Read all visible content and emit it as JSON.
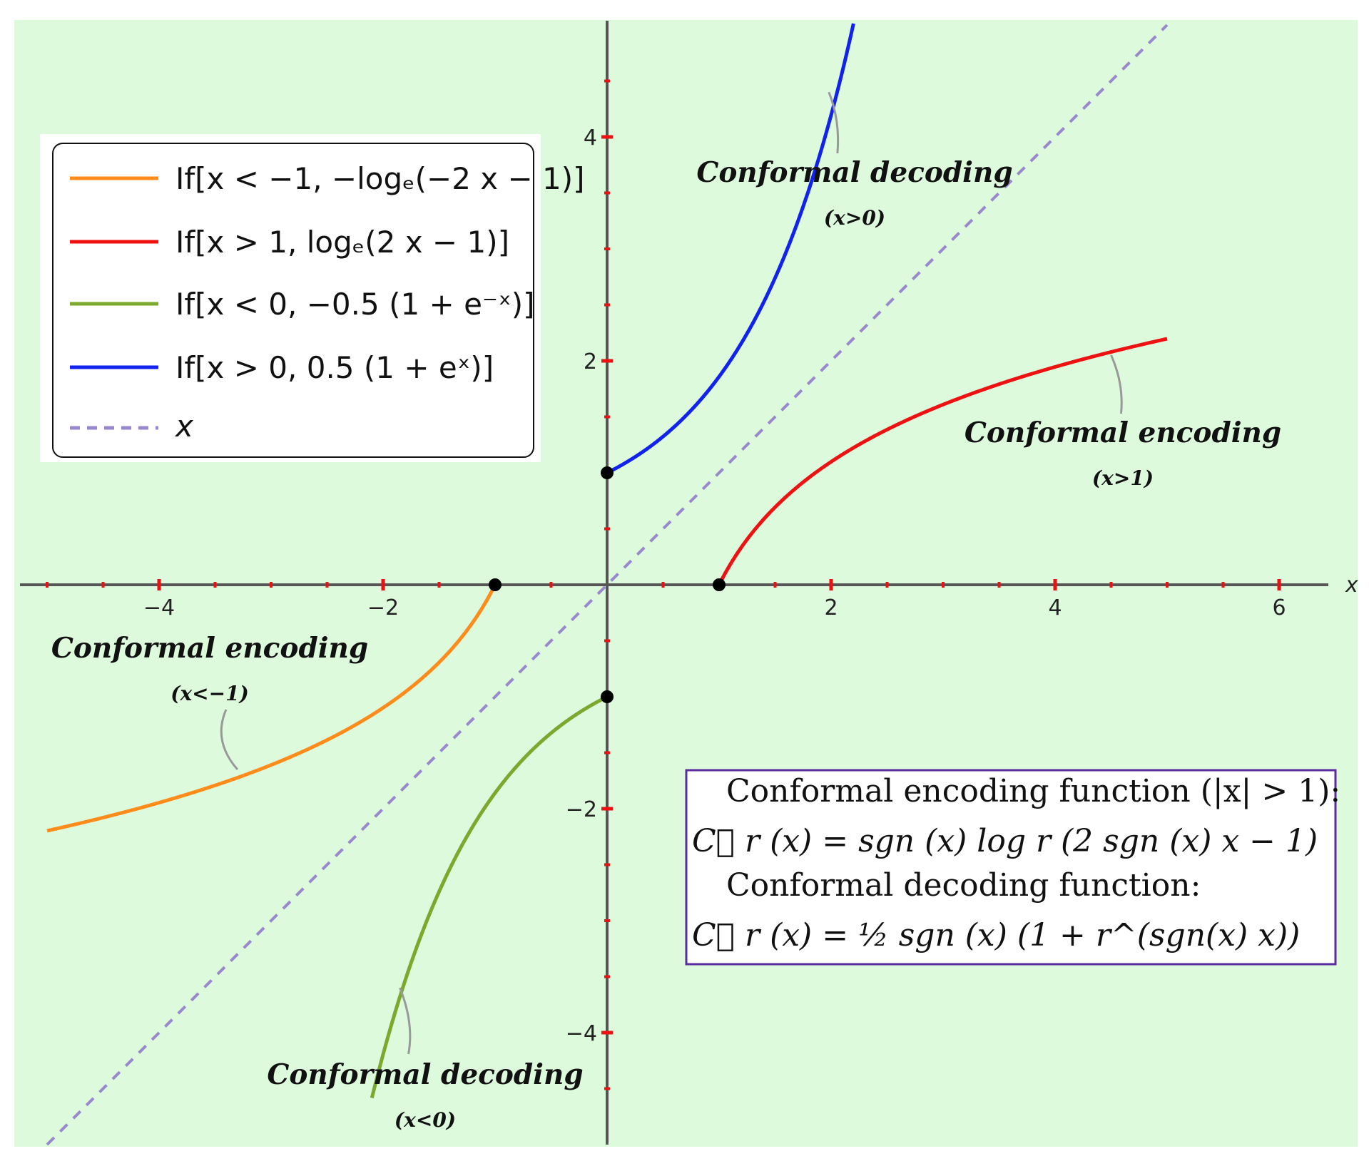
{
  "chart_data": {
    "type": "line",
    "xlim": [
      -5.2,
      6.45
    ],
    "ylim": [
      -5.0,
      5.0
    ],
    "xlabel": "x",
    "ylabel": "",
    "grid": false,
    "legend_position": "top-left",
    "background_color": "#ddfadd",
    "x_ticks": [
      -4,
      -2,
      2,
      4,
      6
    ],
    "y_ticks": [
      -4,
      -2,
      2,
      4
    ],
    "x_tick_labels": [
      "−4",
      "−2",
      "2",
      "4",
      "6"
    ],
    "y_tick_labels": [
      "−4",
      "−2",
      "2",
      "4"
    ],
    "series": [
      {
        "name": "If[x < −1, −logₑ(−2 x − 1)]",
        "color": "#ff8c1a",
        "style": "solid",
        "domain": [
          -5.0,
          -1.0
        ],
        "function": "-ln(-2x-1)",
        "x": [
          -5.0,
          -4.0,
          -3.0,
          -2.0,
          -1.5,
          -1.0
        ],
        "y": [
          -2.2,
          -1.95,
          -1.61,
          -1.1,
          -0.69,
          0.0
        ]
      },
      {
        "name": "If[x > 1, logₑ(2 x − 1)]",
        "color": "#ee1111",
        "style": "solid",
        "domain": [
          1.0,
          5.0
        ],
        "function": "ln(2x-1)",
        "x": [
          1.0,
          1.5,
          2.0,
          3.0,
          4.0,
          5.0
        ],
        "y": [
          0.0,
          0.69,
          1.1,
          1.61,
          1.95,
          2.2
        ]
      },
      {
        "name": "If[x < 0, −0.5 (1 + e⁻ˣ)]",
        "color": "#7aa92e",
        "style": "solid",
        "domain": [
          -2.1,
          0.0
        ],
        "function": "-0.5(1+e^-x)",
        "x": [
          -2.1,
          -2.0,
          -1.5,
          -1.0,
          -0.5,
          0.0
        ],
        "y": [
          -4.58,
          -4.19,
          -2.74,
          -1.86,
          -1.32,
          -1.0
        ]
      },
      {
        "name": "If[x > 0, 0.5 (1 + eˣ)]",
        "color": "#1122ee",
        "style": "solid",
        "domain": [
          0.0,
          2.2
        ],
        "function": "0.5(1+e^x)",
        "x": [
          0.0,
          0.5,
          1.0,
          1.5,
          2.0,
          2.2
        ],
        "y": [
          1.0,
          1.32,
          1.86,
          2.74,
          4.19,
          5.01
        ]
      },
      {
        "name": "x",
        "color": "#9988cc",
        "style": "dashed",
        "domain": [
          -5.0,
          5.0
        ],
        "function": "x",
        "x": [
          -5.0,
          5.0
        ],
        "y": [
          -5.0,
          5.0
        ]
      }
    ],
    "marked_points": [
      {
        "x": -1,
        "y": 0
      },
      {
        "x": 1,
        "y": 0
      },
      {
        "x": 0,
        "y": 1
      },
      {
        "x": 0,
        "y": -1
      }
    ],
    "annotations": [
      {
        "text": "Conformal decoding",
        "condition": "(x>0)",
        "target": [
          1.98,
          4.4
        ]
      },
      {
        "text": "Conformal encoding",
        "condition": "(x>1)",
        "target": [
          4.5,
          2.05
        ]
      },
      {
        "text": "Conformal encoding",
        "condition": "(x<−1)",
        "target": [
          -3.3,
          -1.65
        ]
      },
      {
        "text": "Conformal decoding",
        "condition": "(x<0)",
        "target": [
          -1.85,
          -3.6
        ]
      }
    ],
    "formula_box": {
      "line1": "Conformal encoding function (|x| > 1):",
      "line2": "C⃗ r (x) = sgn (x) log r (2 sgn (x) x − 1)",
      "line3": "Conformal decoding function:",
      "line4": "C⃖ r (x) = ½ sgn (x) (1 + r^(sgn(x) x))"
    }
  }
}
